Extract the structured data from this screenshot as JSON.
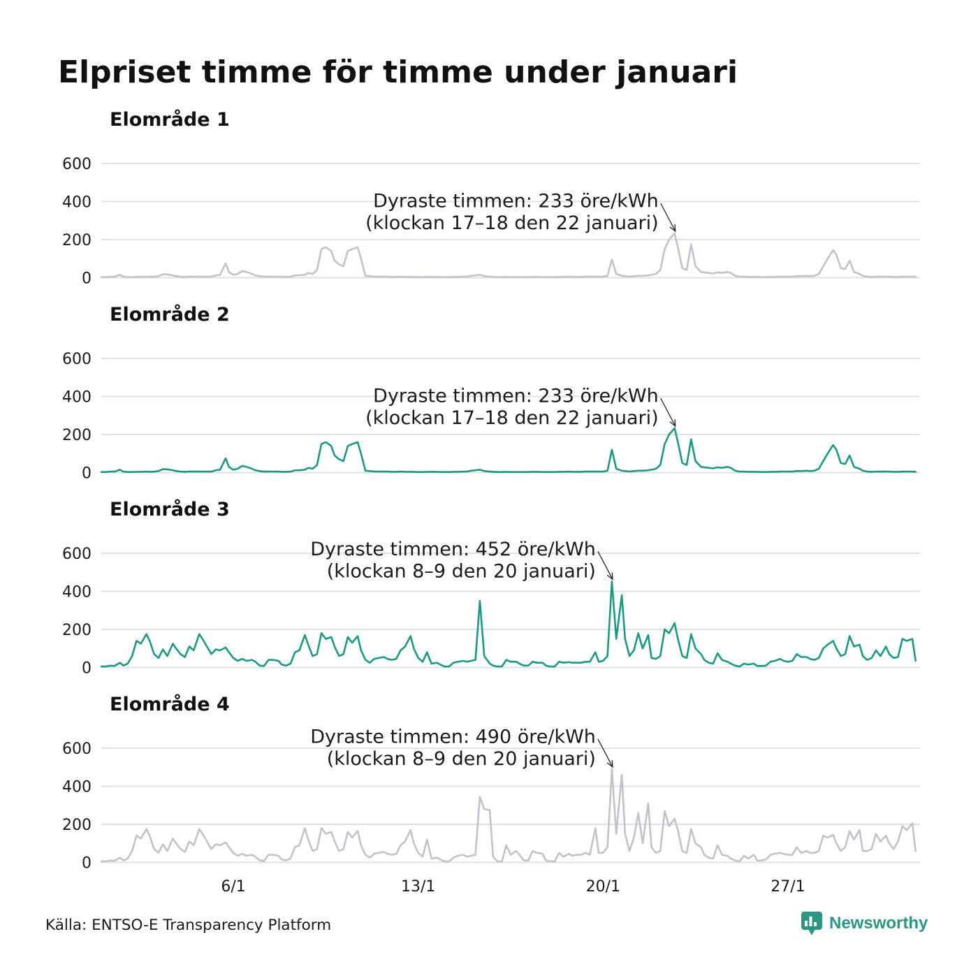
{
  "chart_data": {
    "type": "line",
    "title": "Elpriset timme för timme under januari",
    "x": {
      "days": [
        1,
        2,
        3,
        4,
        5,
        6,
        7,
        8,
        9,
        10,
        11,
        12,
        13,
        14,
        15,
        16,
        17,
        18,
        19,
        20,
        21,
        22,
        23,
        24,
        25,
        26,
        27,
        28,
        29,
        30,
        31
      ],
      "hours": [
        0,
        4,
        8,
        12,
        17,
        20
      ]
    },
    "x_ticks": [
      "6/1",
      "13/1",
      "20/1",
      "27/1"
    ],
    "ylim": [
      0,
      600
    ],
    "y_ticks": [
      0,
      200,
      400,
      600
    ],
    "grid": true,
    "panels": [
      {
        "title": "Elområde 1",
        "color": "#c3c2cc",
        "values": [
          [
            3,
            3,
            5,
            5,
            15,
            5
          ],
          [
            3,
            3,
            4,
            4,
            5,
            4
          ],
          [
            5,
            8,
            18,
            17,
            12,
            8
          ],
          [
            5,
            4,
            6,
            5,
            6,
            5
          ],
          [
            5,
            5,
            12,
            15,
            75,
            30
          ],
          [
            15,
            20,
            35,
            30,
            20,
            12
          ],
          [
            8,
            5,
            5,
            5,
            5,
            4
          ],
          [
            4,
            5,
            12,
            12,
            15,
            25
          ],
          [
            20,
            40,
            150,
            160,
            140,
            90
          ],
          [
            70,
            60,
            140,
            150,
            160,
            100
          ],
          [
            10,
            8,
            6,
            5,
            6,
            5
          ],
          [
            4,
            4,
            5,
            4,
            4,
            4
          ],
          [
            3,
            3,
            4,
            4,
            4,
            3
          ],
          [
            3,
            3,
            4,
            4,
            5,
            5
          ],
          [
            10,
            12,
            15,
            8,
            5,
            4
          ],
          [
            3,
            3,
            4,
            3,
            3,
            3
          ],
          [
            3,
            3,
            4,
            4,
            3,
            3
          ],
          [
            3,
            3,
            4,
            4,
            5,
            4
          ],
          [
            4,
            4,
            6,
            5,
            6,
            5
          ],
          [
            5,
            10,
            95,
            20,
            10,
            8
          ],
          [
            6,
            8,
            10,
            10,
            12,
            15
          ],
          [
            20,
            40,
            150,
            200,
            233,
            160
          ],
          [
            50,
            40,
            175,
            60,
            30,
            28
          ],
          [
            25,
            22,
            28,
            25,
            30,
            25
          ],
          [
            10,
            5,
            5,
            4,
            4,
            4
          ],
          [
            3,
            3,
            4,
            4,
            5,
            5
          ],
          [
            5,
            5,
            8,
            8,
            10,
            8
          ],
          [
            10,
            20,
            60,
            100,
            145,
            120
          ],
          [
            50,
            45,
            90,
            30,
            20,
            10
          ],
          [
            5,
            4,
            5,
            5,
            6,
            5
          ],
          [
            4,
            4,
            5,
            5,
            5,
            4
          ]
        ],
        "annotation": {
          "line1": "Dyraste timmen: 233 öre/kWh",
          "line2": "(klockan 17–18 den 22 januari)",
          "day": 22,
          "hour": 17,
          "value": 233
        }
      },
      {
        "title": "Elområde 2",
        "color": "#1b9a83",
        "values": [
          [
            3,
            3,
            5,
            5,
            15,
            5
          ],
          [
            3,
            3,
            4,
            4,
            5,
            4
          ],
          [
            5,
            8,
            18,
            17,
            12,
            8
          ],
          [
            5,
            4,
            6,
            5,
            6,
            5
          ],
          [
            5,
            5,
            12,
            15,
            75,
            30
          ],
          [
            15,
            20,
            35,
            30,
            20,
            12
          ],
          [
            8,
            5,
            5,
            5,
            5,
            4
          ],
          [
            4,
            5,
            12,
            12,
            15,
            25
          ],
          [
            20,
            40,
            150,
            160,
            140,
            90
          ],
          [
            70,
            60,
            140,
            150,
            160,
            100
          ],
          [
            10,
            8,
            6,
            5,
            6,
            5
          ],
          [
            4,
            4,
            5,
            4,
            4,
            4
          ],
          [
            3,
            3,
            4,
            4,
            4,
            3
          ],
          [
            3,
            3,
            4,
            4,
            5,
            5
          ],
          [
            10,
            12,
            15,
            8,
            5,
            4
          ],
          [
            3,
            3,
            4,
            3,
            3,
            3
          ],
          [
            3,
            3,
            4,
            4,
            3,
            3
          ],
          [
            3,
            3,
            4,
            4,
            5,
            4
          ],
          [
            4,
            4,
            6,
            5,
            6,
            5
          ],
          [
            5,
            10,
            120,
            20,
            10,
            8
          ],
          [
            6,
            8,
            10,
            10,
            12,
            15
          ],
          [
            20,
            40,
            150,
            200,
            233,
            160
          ],
          [
            50,
            40,
            175,
            60,
            30,
            28
          ],
          [
            25,
            22,
            28,
            25,
            30,
            25
          ],
          [
            10,
            5,
            5,
            4,
            4,
            4
          ],
          [
            3,
            3,
            4,
            4,
            5,
            5
          ],
          [
            5,
            5,
            8,
            8,
            10,
            8
          ],
          [
            10,
            20,
            60,
            100,
            145,
            120
          ],
          [
            50,
            45,
            90,
            30,
            20,
            10
          ],
          [
            5,
            4,
            5,
            5,
            6,
            5
          ],
          [
            4,
            4,
            5,
            5,
            5,
            4
          ]
        ],
        "annotation": {
          "line1": "Dyraste timmen: 233 öre/kWh",
          "line2": "(klockan 17–18 den 22 januari)",
          "day": 22,
          "hour": 17,
          "value": 233
        }
      },
      {
        "title": "Elområde 3",
        "color": "#1b9a83",
        "values": [
          [
            5,
            5,
            10,
            8,
            25,
            10
          ],
          [
            20,
            60,
            140,
            125,
            175,
            140
          ],
          [
            70,
            50,
            95,
            60,
            125,
            100
          ],
          [
            70,
            55,
            110,
            90,
            175,
            150
          ],
          [
            110,
            70,
            95,
            90,
            105,
            80
          ],
          [
            50,
            35,
            45,
            35,
            40,
            30
          ],
          [
            10,
            8,
            40,
            40,
            35,
            15
          ],
          [
            10,
            20,
            80,
            90,
            170,
            120
          ],
          [
            60,
            70,
            180,
            150,
            160,
            110
          ],
          [
            60,
            70,
            160,
            130,
            165,
            90
          ],
          [
            40,
            25,
            45,
            50,
            55,
            45
          ],
          [
            40,
            45,
            90,
            110,
            165,
            100
          ],
          [
            50,
            30,
            80,
            20,
            25,
            15
          ],
          [
            5,
            5,
            25,
            30,
            35,
            30
          ],
          [
            35,
            40,
            350,
            60,
            20,
            10
          ],
          [
            5,
            5,
            40,
            30,
            30,
            20
          ],
          [
            10,
            10,
            30,
            25,
            25,
            10
          ],
          [
            5,
            5,
            30,
            25,
            28,
            25
          ],
          [
            25,
            25,
            30,
            30,
            80,
            30
          ],
          [
            35,
            60,
            452,
            150,
            380,
            150
          ],
          [
            60,
            90,
            180,
            100,
            170,
            50
          ],
          [
            45,
            60,
            200,
            180,
            233,
            150
          ],
          [
            60,
            50,
            175,
            100,
            70,
            40
          ],
          [
            25,
            20,
            75,
            40,
            30,
            20
          ],
          [
            10,
            5,
            20,
            15,
            20,
            8
          ],
          [
            8,
            10,
            30,
            35,
            45,
            35
          ],
          [
            30,
            35,
            70,
            55,
            55,
            45
          ],
          [
            40,
            50,
            100,
            120,
            140,
            100
          ],
          [
            60,
            70,
            165,
            110,
            120,
            60
          ],
          [
            40,
            50,
            90,
            60,
            110,
            70
          ],
          [
            50,
            55,
            150,
            140,
            150,
            35
          ]
        ],
        "annotation": {
          "line1": "Dyraste timmen: 452 öre/kWh",
          "line2": "(klockan 8–9 den 20 januari)",
          "day": 20,
          "hour": 8,
          "value": 452
        }
      },
      {
        "title": "Elområde 4",
        "color": "#c3c2cc",
        "values": [
          [
            5,
            5,
            10,
            8,
            25,
            10
          ],
          [
            20,
            60,
            140,
            125,
            175,
            140
          ],
          [
            70,
            50,
            95,
            60,
            125,
            100
          ],
          [
            70,
            55,
            110,
            90,
            175,
            150
          ],
          [
            110,
            70,
            95,
            90,
            105,
            80
          ],
          [
            50,
            35,
            45,
            35,
            40,
            30
          ],
          [
            10,
            8,
            40,
            40,
            35,
            15
          ],
          [
            10,
            20,
            80,
            90,
            180,
            120
          ],
          [
            60,
            70,
            180,
            150,
            160,
            110
          ],
          [
            60,
            70,
            160,
            130,
            165,
            90
          ],
          [
            40,
            25,
            45,
            50,
            55,
            45
          ],
          [
            40,
            45,
            90,
            110,
            170,
            100
          ],
          [
            50,
            30,
            120,
            20,
            25,
            15
          ],
          [
            5,
            5,
            25,
            35,
            40,
            30
          ],
          [
            35,
            40,
            345,
            280,
            275,
            30
          ],
          [
            5,
            5,
            90,
            40,
            60,
            40
          ],
          [
            10,
            10,
            60,
            50,
            45,
            10
          ],
          [
            5,
            5,
            50,
            30,
            45,
            35
          ],
          [
            40,
            40,
            50,
            40,
            180,
            50
          ],
          [
            50,
            80,
            490,
            150,
            460,
            150
          ],
          [
            60,
            130,
            260,
            100,
            310,
            80
          ],
          [
            50,
            60,
            270,
            190,
            230,
            170
          ],
          [
            60,
            50,
            175,
            100,
            80,
            40
          ],
          [
            25,
            20,
            90,
            40,
            35,
            20
          ],
          [
            10,
            5,
            35,
            20,
            40,
            10
          ],
          [
            10,
            15,
            40,
            45,
            50,
            45
          ],
          [
            40,
            40,
            80,
            50,
            60,
            50
          ],
          [
            50,
            60,
            140,
            130,
            145,
            100
          ],
          [
            60,
            80,
            165,
            120,
            170,
            60
          ],
          [
            60,
            70,
            150,
            110,
            140,
            100
          ],
          [
            70,
            110,
            190,
            170,
            205,
            60
          ]
        ],
        "annotation": {
          "line1": "Dyraste timmen: 490 öre/kWh",
          "line2": "(klockan 8–9 den 20 januari)",
          "day": 20,
          "hour": 8,
          "value": 490
        }
      }
    ]
  },
  "source": "Källa: ENTSO-E Transparency Platform",
  "logo": {
    "text": "Newsworthy",
    "icon": "newsworthy-logo-icon",
    "color": "#2a9683"
  }
}
